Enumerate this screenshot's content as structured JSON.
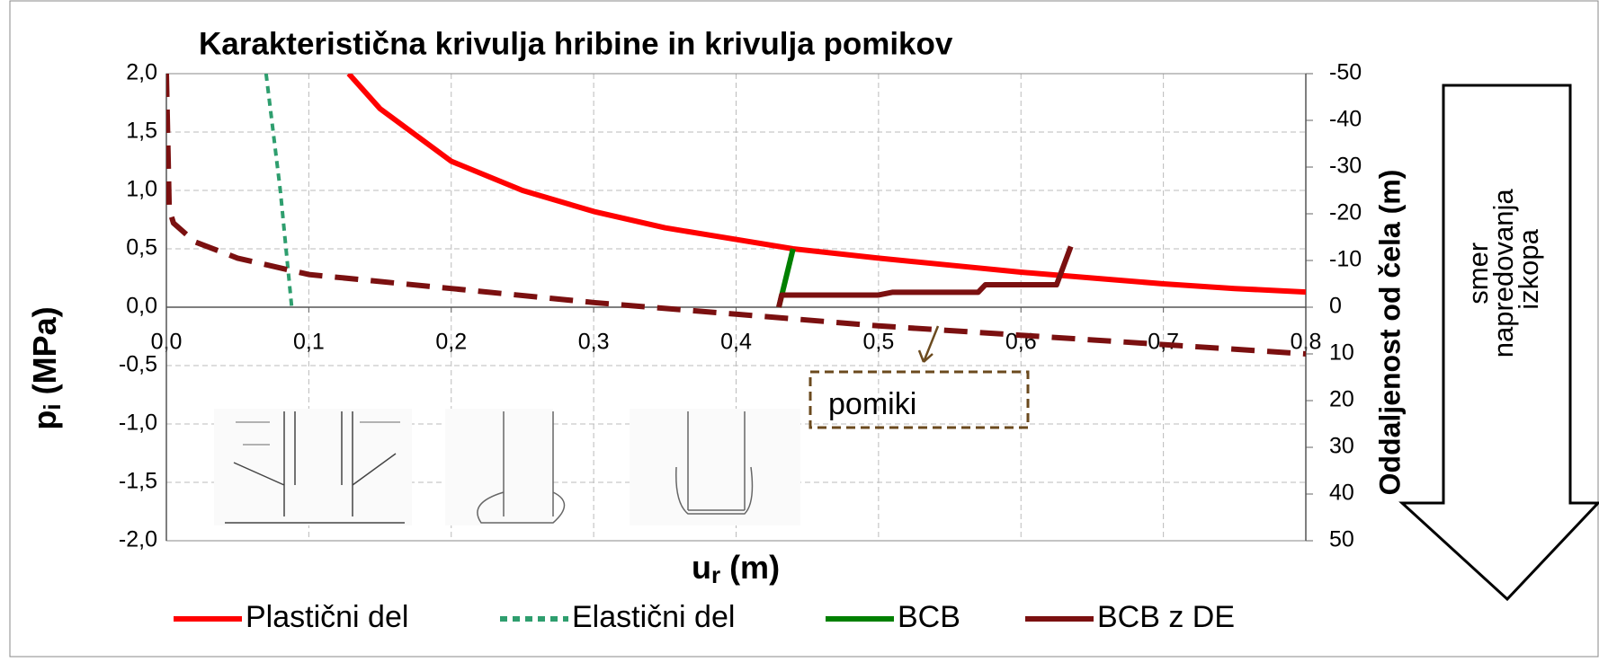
{
  "chart_data": {
    "type": "line",
    "title": "Karakteristična krivulja hribine in krivulja pomikov",
    "xlabel": {
      "text": "u",
      "sub": "r",
      "rest": " (m)"
    },
    "ylabel": {
      "text": "p",
      "sub": "i",
      "rest": " (MPa)"
    },
    "y2label": "Oddaljenost od čela (m)",
    "xlim": [
      0,
      0.8
    ],
    "xticks": [
      {
        "value": 0,
        "label": "0,0"
      },
      {
        "value": 0.1,
        "label": "0,1"
      },
      {
        "value": 0.2,
        "label": "0,2"
      },
      {
        "value": 0.3,
        "label": "0,3"
      },
      {
        "value": 0.4,
        "label": "0,4"
      },
      {
        "value": 0.5,
        "label": "0,5"
      },
      {
        "value": 0.6,
        "label": "0,6"
      },
      {
        "value": 0.7,
        "label": "0,7"
      },
      {
        "value": 0.8,
        "label": "0,8"
      }
    ],
    "ylim": [
      -2,
      2
    ],
    "yticks": [
      {
        "value": 2,
        "label": "2,0"
      },
      {
        "value": 1.5,
        "label": "1,5"
      },
      {
        "value": 1,
        "label": "1,0"
      },
      {
        "value": 0.5,
        "label": "0,5"
      },
      {
        "value": 0,
        "label": "0,0"
      },
      {
        "value": -0.5,
        "label": "-0,5"
      },
      {
        "value": -1,
        "label": "-1,0"
      },
      {
        "value": -1.5,
        "label": "-1,5"
      },
      {
        "value": -2,
        "label": "-2,0"
      }
    ],
    "y2lim": [
      50,
      -50
    ],
    "y2ticks": [
      -50,
      -40,
      -30,
      -20,
      -10,
      0,
      10,
      20,
      30,
      40,
      50
    ],
    "grid": true,
    "series": [
      {
        "name": "Plastični del",
        "color": "#ff0000",
        "line_style": "solid",
        "x": [
          0.128,
          0.15,
          0.2,
          0.25,
          0.3,
          0.35,
          0.4,
          0.44,
          0.5,
          0.55,
          0.6,
          0.65,
          0.7,
          0.75,
          0.8
        ],
        "values": [
          2.0,
          1.7,
          1.25,
          1.0,
          0.82,
          0.68,
          0.58,
          0.5,
          0.42,
          0.36,
          0.3,
          0.25,
          0.2,
          0.16,
          0.13
        ]
      },
      {
        "name": "Elastični del",
        "color": "#2e9e6e",
        "line_style": "dashed",
        "x": [
          0.07,
          0.08,
          0.088
        ],
        "values": [
          2.0,
          1.0,
          0.0
        ]
      },
      {
        "name": "BCB",
        "color": "#008000",
        "line_style": "solid",
        "x": [
          0.43,
          0.44
        ],
        "values": [
          0.0,
          0.5
        ]
      },
      {
        "name": "BCB z DE",
        "color": "#7b1010",
        "line_style": "solid",
        "axis": "y2",
        "x": [
          0.43,
          0.432,
          0.5,
          0.51,
          0.57,
          0.575,
          0.625,
          0.635
        ],
        "values": [
          0,
          -2.6,
          -2.6,
          -3.2,
          -3.2,
          -4.8,
          -4.8,
          -13
        ]
      },
      {
        "color": "#7b1010",
        "line_style": "dashed",
        "axis": "y2",
        "x": [
          0.0,
          0.002,
          0.005,
          0.02,
          0.05,
          0.1,
          0.2,
          0.3,
          0.4,
          0.5,
          0.6,
          0.7,
          0.8
        ],
        "values": [
          -50,
          -21,
          -18,
          -14,
          -10.5,
          -7,
          -4,
          -1,
          1.5,
          4,
          6,
          8,
          10
        ]
      }
    ],
    "annotations": {
      "box": "pomiki",
      "arrow": [
        "smer",
        "napredovanja",
        "izkopa"
      ]
    }
  }
}
